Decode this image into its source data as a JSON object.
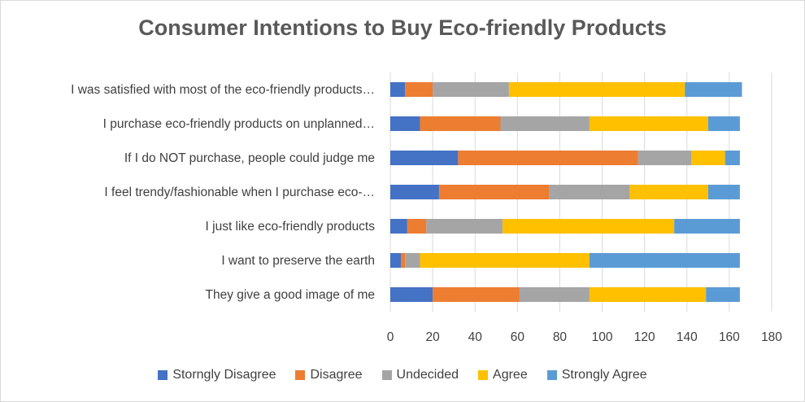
{
  "chart_data": {
    "type": "bar",
    "orientation": "horizontal",
    "stacked": true,
    "title": "Consumer Intentions to Buy Eco-friendly Products",
    "xlabel": "",
    "ylabel": "",
    "xlim": [
      0,
      180
    ],
    "xticks": [
      0,
      20,
      40,
      60,
      80,
      100,
      120,
      140,
      160,
      180
    ],
    "grid": "vertical",
    "legend_position": "bottom",
    "categories": [
      "I was satisfied with most of the eco-friendly products…",
      "I purchase eco-friendly products on unplanned…",
      "If I do NOT purchase, people could judge me",
      "I feel trendy/fashionable when I purchase eco-…",
      "I just like eco-friendly products",
      "I want to preserve the earth",
      "They give a good image of me"
    ],
    "series": [
      {
        "name": "Storngly Disagree",
        "color": "#4472C4",
        "values": [
          7,
          14,
          32,
          23,
          8,
          5,
          20
        ]
      },
      {
        "name": "Disagree",
        "color": "#ED7D31",
        "values": [
          13,
          38,
          85,
          52,
          9,
          2,
          41
        ]
      },
      {
        "name": "Undecided",
        "color": "#A5A5A5",
        "values": [
          36,
          42,
          25,
          38,
          36,
          7,
          33
        ]
      },
      {
        "name": "Agree",
        "color": "#FFC000",
        "values": [
          83,
          56,
          16,
          37,
          81,
          80,
          55
        ]
      },
      {
        "name": "Strongly Agree",
        "color": "#5B9BD5",
        "values": [
          27,
          15,
          7,
          15,
          31,
          71,
          16
        ]
      }
    ]
  }
}
